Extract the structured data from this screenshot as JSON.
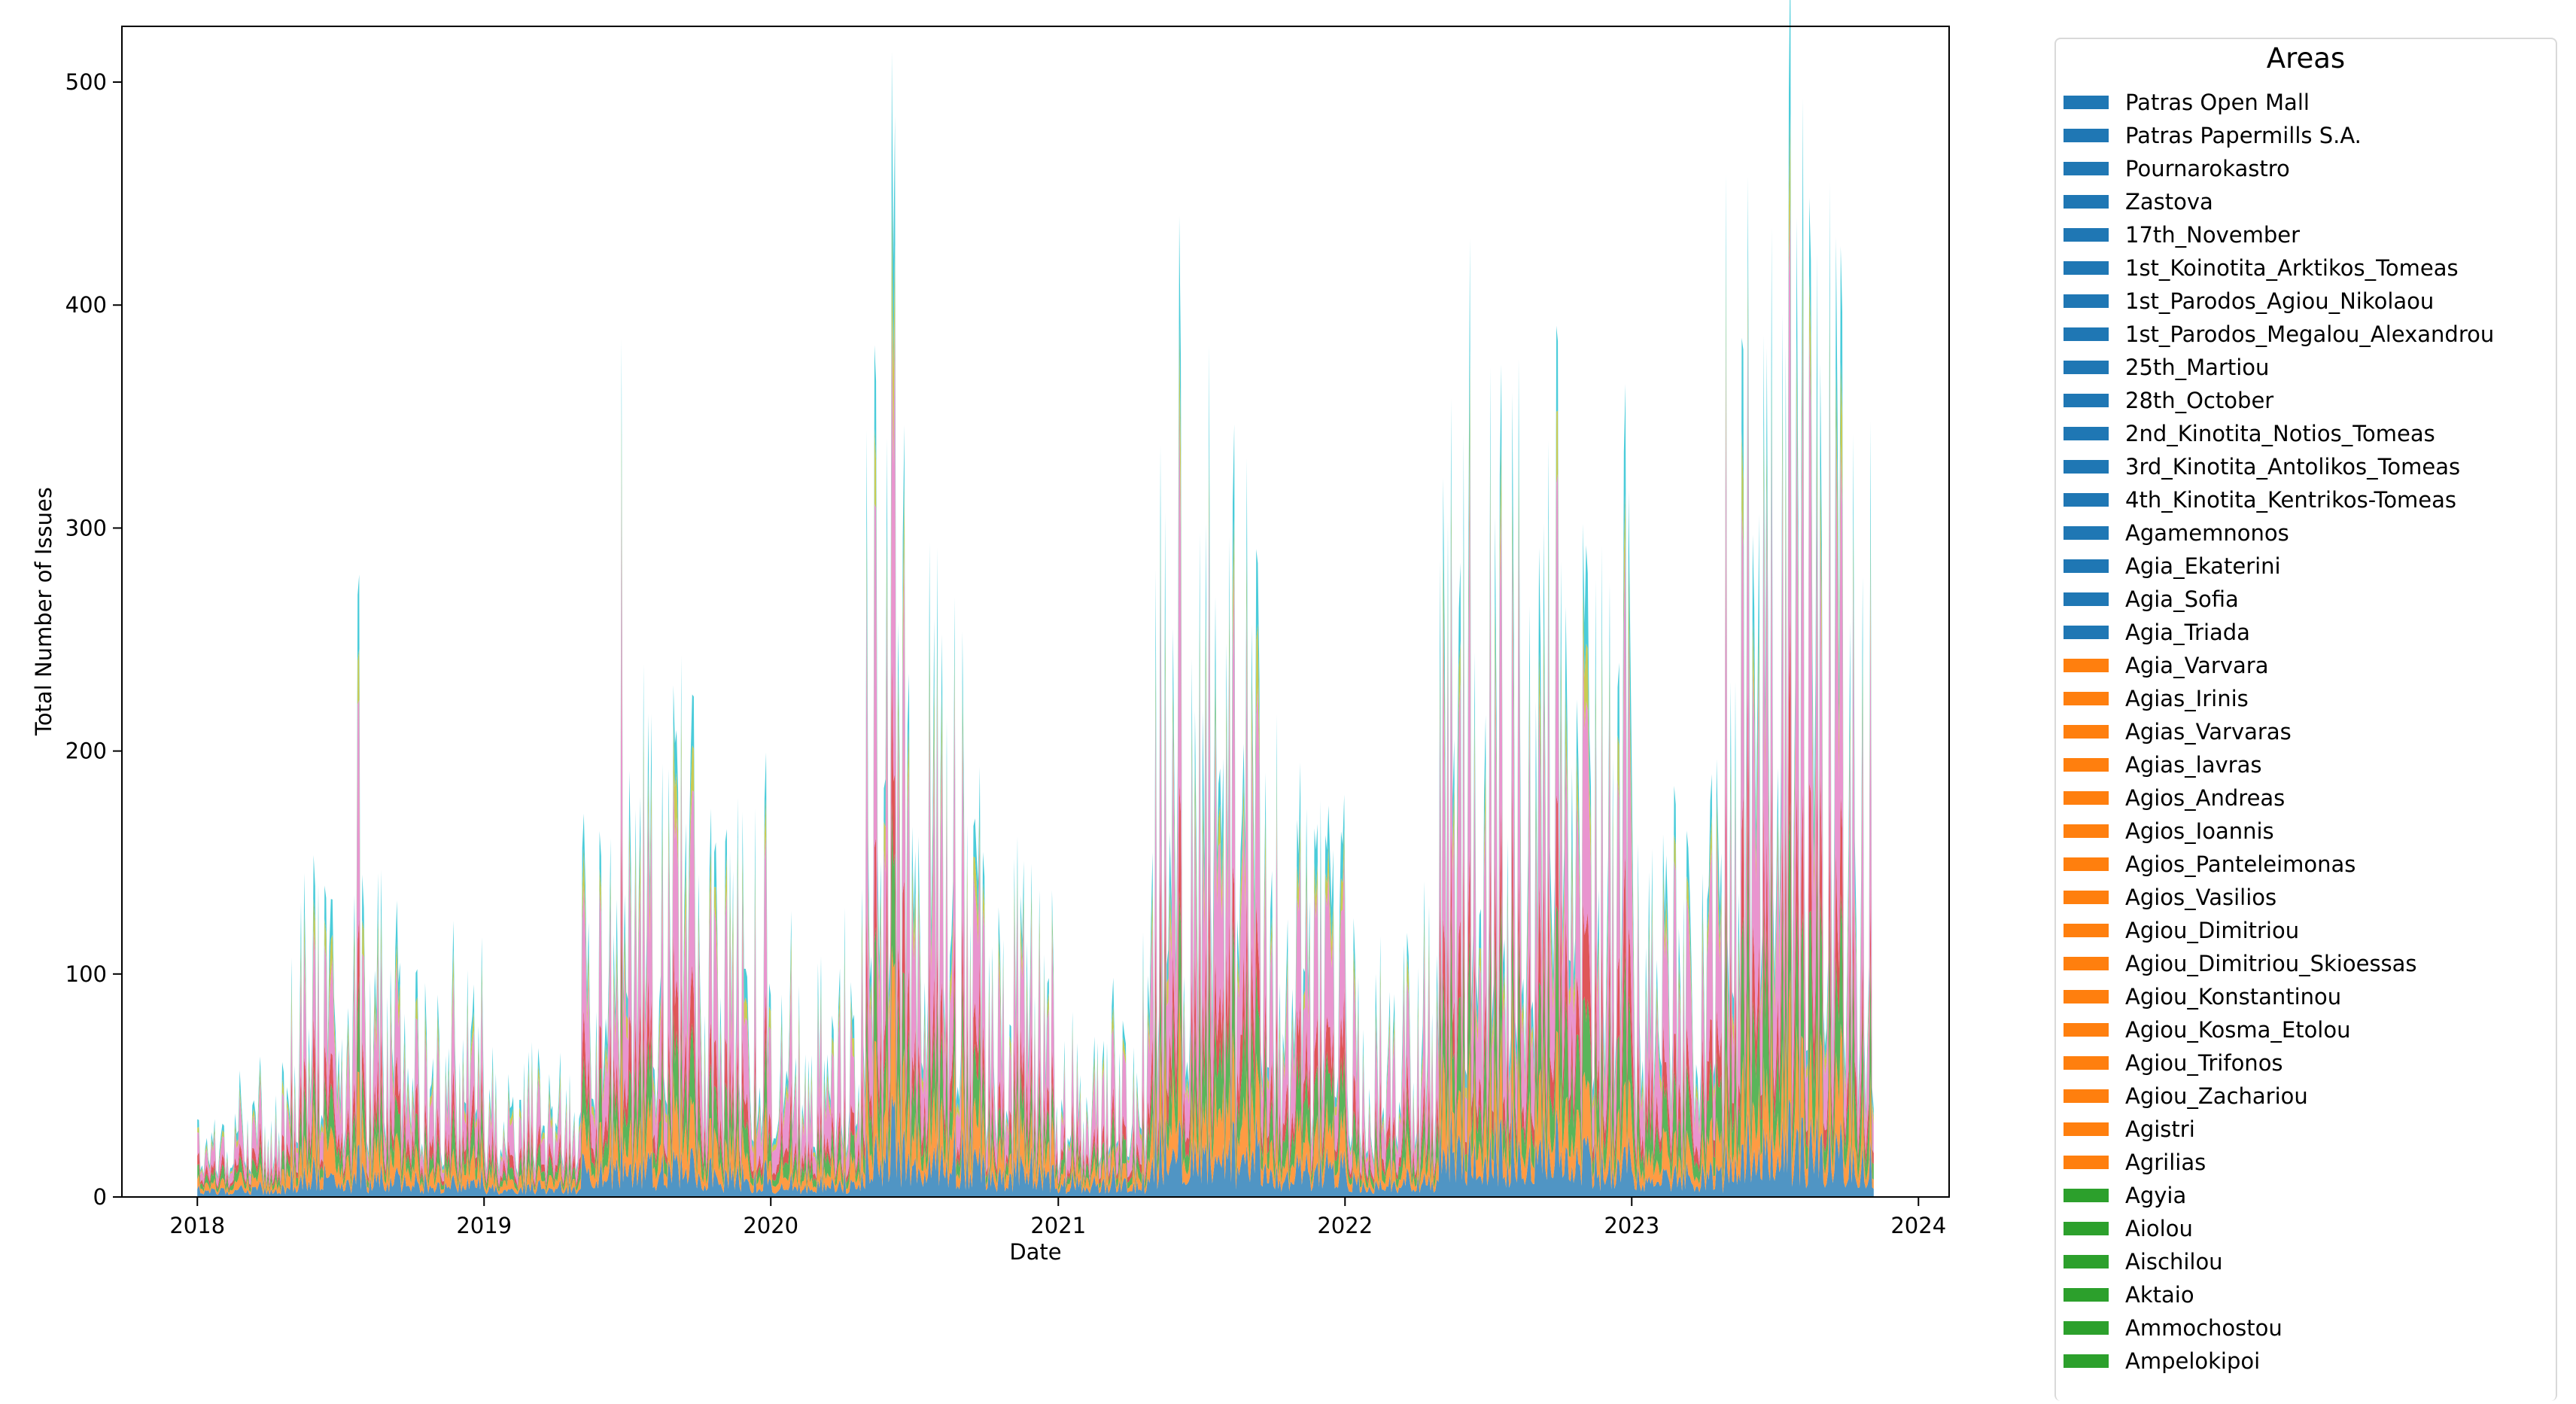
{
  "chart_data": {
    "type": "area",
    "stacked": true,
    "xlabel": "Date",
    "ylabel": "Total Number of Issues",
    "x_range": [
      "2018-01-01",
      "2023-11-05"
    ],
    "x_ticks": [
      "2018",
      "2019",
      "2020",
      "2021",
      "2022",
      "2023",
      "2024"
    ],
    "ylim": [
      0,
      525
    ],
    "y_ticks": [
      0,
      100,
      200,
      300,
      400,
      500
    ],
    "grid": false,
    "legend": {
      "title": "Areas",
      "placement": "outside-right",
      "entries": [
        {
          "name": " Patras Open Mall",
          "color": "#1f77b4"
        },
        {
          "name": " Patras Papermills S.A.",
          "color": "#1f77b4"
        },
        {
          "name": " Pournarokastro",
          "color": "#1f77b4"
        },
        {
          "name": " Zastova",
          "color": "#1f77b4"
        },
        {
          "name": "17th_November",
          "color": "#1f77b4"
        },
        {
          "name": "1st_Koinotita_Arktikos_Tomeas",
          "color": "#1f77b4"
        },
        {
          "name": "1st_Parodos_Agiou_Nikolaou",
          "color": "#1f77b4"
        },
        {
          "name": "1st_Parodos_Megalou_Alexandrou",
          "color": "#1f77b4"
        },
        {
          "name": "25th_Martiou",
          "color": "#1f77b4"
        },
        {
          "name": "28th_October",
          "color": "#1f77b4"
        },
        {
          "name": "2nd_Kinotita_Notios_Tomeas",
          "color": "#1f77b4"
        },
        {
          "name": "3rd_Kinotita_Antolikos_Tomeas",
          "color": "#1f77b4"
        },
        {
          "name": "4th_Kinotita_Kentrikos-Tomeas",
          "color": "#1f77b4"
        },
        {
          "name": "Agamemnonos",
          "color": "#1f77b4"
        },
        {
          "name": "Agia_Ekaterini",
          "color": "#1f77b4"
        },
        {
          "name": "Agia_Sofia",
          "color": "#1f77b4"
        },
        {
          "name": "Agia_Triada",
          "color": "#1f77b4"
        },
        {
          "name": "Agia_Varvara",
          "color": "#ff7f0e"
        },
        {
          "name": "Agias_Irinis",
          "color": "#ff7f0e"
        },
        {
          "name": "Agias_Varvaras",
          "color": "#ff7f0e"
        },
        {
          "name": "Agias_lavras",
          "color": "#ff7f0e"
        },
        {
          "name": "Agios_Andreas",
          "color": "#ff7f0e"
        },
        {
          "name": "Agios_Ioannis",
          "color": "#ff7f0e"
        },
        {
          "name": "Agios_Panteleimonas",
          "color": "#ff7f0e"
        },
        {
          "name": "Agios_Vasilios",
          "color": "#ff7f0e"
        },
        {
          "name": "Agiou_Dimitriou",
          "color": "#ff7f0e"
        },
        {
          "name": "Agiou_Dimitriou_Skioessas",
          "color": "#ff7f0e"
        },
        {
          "name": "Agiou_Konstantinou",
          "color": "#ff7f0e"
        },
        {
          "name": "Agiou_Kosma_Etolou",
          "color": "#ff7f0e"
        },
        {
          "name": "Agiou_Trifonos",
          "color": "#ff7f0e"
        },
        {
          "name": "Agiou_Zachariou",
          "color": "#ff7f0e"
        },
        {
          "name": "Agistri",
          "color": "#ff7f0e"
        },
        {
          "name": "Agrilias",
          "color": "#ff7f0e"
        },
        {
          "name": "Agyia",
          "color": "#2ca02c"
        },
        {
          "name": "Aiolou",
          "color": "#2ca02c"
        },
        {
          "name": "Aischilou",
          "color": "#2ca02c"
        },
        {
          "name": "Aktaio",
          "color": "#2ca02c"
        },
        {
          "name": "Ammochostou",
          "color": "#2ca02c"
        },
        {
          "name": "Ampelokipoi",
          "color": "#2ca02c"
        }
      ]
    },
    "stack_groups": [
      {
        "color": "#1f77b4",
        "values": [
          5,
          4,
          5,
          6,
          7,
          9,
          8,
          10,
          8,
          11,
          12,
          10
        ]
      },
      {
        "color": "#ff7f0e",
        "values": [
          5,
          6,
          6,
          7,
          10,
          11,
          8,
          11,
          10,
          12,
          15,
          14
        ]
      },
      {
        "color": "#2ca02c",
        "values": [
          6,
          6,
          7,
          8,
          12,
          12,
          8,
          14,
          12,
          16,
          22,
          20
        ]
      },
      {
        "color": "#d62728",
        "values": [
          5,
          5,
          6,
          7,
          10,
          10,
          6,
          12,
          10,
          12,
          18,
          15
        ]
      },
      {
        "color": "#e377c2",
        "values": [
          12,
          15,
          16,
          20,
          35,
          38,
          20,
          38,
          30,
          42,
          55,
          50
        ]
      },
      {
        "color": "#bcbd22",
        "values": [
          3,
          4,
          4,
          5,
          8,
          8,
          4,
          9,
          6,
          9,
          12,
          10
        ]
      },
      {
        "color": "#17becf",
        "values": [
          4,
          5,
          5,
          6,
          10,
          10,
          5,
          12,
          9,
          14,
          18,
          15
        ]
      }
    ],
    "series_dates": [
      "2018-01",
      "2018-07",
      "2019-01",
      "2019-07",
      "2020-01",
      "2020-07",
      "2021-01",
      "2021-07",
      "2022-01",
      "2022-07",
      "2023-01",
      "2023-07"
    ],
    "notable_peaks": [
      {
        "date": "2018-07-25",
        "value": 270
      },
      {
        "date": "2019-06-25",
        "value": 385
      },
      {
        "date": "2020-06-05",
        "value": 420
      },
      {
        "date": "2021-06-05",
        "value": 440
      },
      {
        "date": "2022-06-10",
        "value": 430
      },
      {
        "date": "2023-07-20",
        "value": 495
      },
      {
        "date": "2023-09-10",
        "value": 455
      }
    ]
  }
}
